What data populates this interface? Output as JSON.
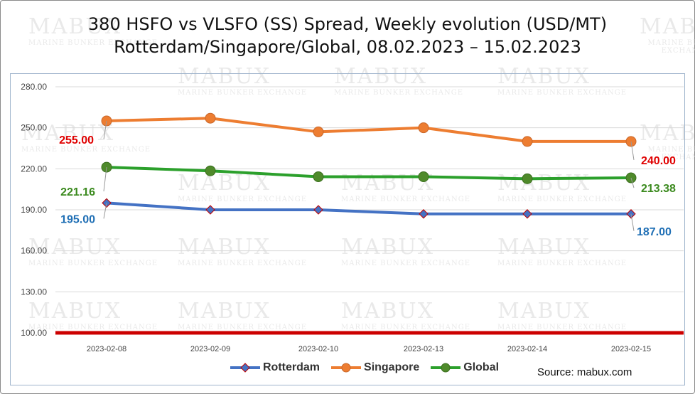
{
  "chart_data": {
    "type": "line",
    "title": [
      "380 HSFO vs VLSFO (SS) Spread, Weekly evolution (USD/MT)",
      "Rotterdam/Singapore/Global, 08.02.2023 – 15.02.2023"
    ],
    "categories": [
      "2023-02-08",
      "2023-02-09",
      "2023-02-10",
      "2023-02-13",
      "2023-02-14",
      "2023-02-15"
    ],
    "ylim": [
      100,
      280
    ],
    "yticks": [
      "100.00",
      "130.00",
      "160.00",
      "190.00",
      "220.00",
      "250.00",
      "280.00"
    ],
    "grid": true,
    "legend_position": "bottom",
    "series": [
      {
        "name": "Rotterdam",
        "color": "#4472c4",
        "marker": "diamond",
        "values": [
          195,
          190,
          190,
          187,
          187,
          187
        ],
        "labels": {
          "first": "195.00",
          "last": "187.00"
        },
        "label_color": "#1f6fb5"
      },
      {
        "name": "Singapore",
        "color": "#ed7d31",
        "marker": "circle",
        "values": [
          255,
          257,
          247,
          250,
          240,
          240
        ],
        "labels": {
          "first": "255.00",
          "last": "240.00"
        },
        "label_color": "#e00000"
      },
      {
        "name": "Global",
        "color": "#2ca02c",
        "marker": "circle",
        "values": [
          221.16,
          218.5,
          214.2,
          214.2,
          212.7,
          213.38
        ],
        "labels": {
          "first": "221.16",
          "last": "213.38"
        },
        "label_color": "#3b8a1e"
      }
    ],
    "reference_line": {
      "value": 100,
      "color": "#cc0000"
    },
    "watermark": {
      "brand": "MABUX",
      "sub": "MARINE BUNKER EXCHANGE"
    },
    "source": "Source: mabux.com"
  }
}
